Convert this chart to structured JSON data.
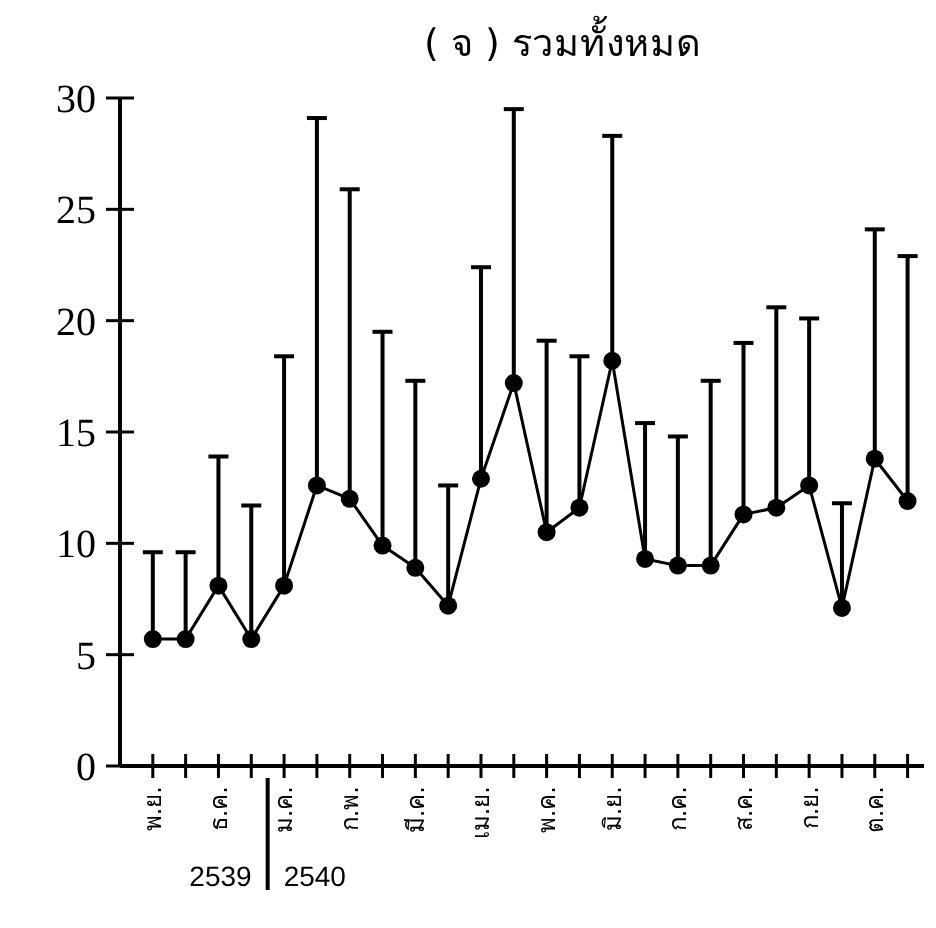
{
  "chart_data": {
    "type": "line",
    "title": "( จ ) รวมทั้งหมด",
    "categories": [
      "พ.ย.",
      null,
      "ธ.ค.",
      null,
      "ม.ค.",
      null,
      "ก.พ.",
      null,
      "มี.ค.",
      null,
      "เม.ย.",
      null,
      "พ.ค.",
      null,
      "มิ.ย.",
      null,
      "ก.ค.",
      null,
      "ส.ค.",
      null,
      "ก.ย.",
      null,
      "ต.ค.",
      null
    ],
    "values": [
      5.7,
      5.7,
      8.1,
      5.7,
      8.1,
      12.6,
      12.0,
      9.9,
      8.9,
      7.2,
      12.9,
      17.2,
      10.5,
      11.6,
      18.2,
      9.3,
      9.0,
      9.0,
      11.3,
      11.6,
      12.6,
      7.1,
      13.8,
      11.9
    ],
    "errors": [
      [
        5.7,
        9.6
      ],
      [
        5.7,
        9.6
      ],
      [
        8.1,
        13.9
      ],
      [
        5.7,
        11.7
      ],
      [
        8.1,
        18.4
      ],
      [
        12.6,
        29.1
      ],
      [
        12.0,
        25.9
      ],
      [
        9.9,
        19.5
      ],
      [
        8.9,
        17.3
      ],
      [
        7.2,
        12.6
      ],
      [
        12.9,
        22.4
      ],
      [
        17.2,
        29.5
      ],
      [
        10.5,
        19.1
      ],
      [
        11.6,
        18.4
      ],
      [
        18.2,
        28.3
      ],
      [
        9.3,
        15.4
      ],
      [
        9.0,
        14.8
      ],
      [
        9.0,
        17.3
      ],
      [
        11.3,
        19.0
      ],
      [
        11.6,
        20.6
      ],
      [
        12.6,
        20.1
      ],
      [
        7.1,
        11.8
      ],
      [
        13.8,
        24.1
      ],
      [
        11.9,
        22.9
      ]
    ],
    "color": "#000000",
    "marker": "circle",
    "line_style": "solid",
    "ylim": [
      0,
      30
    ],
    "yticks": [
      0,
      5,
      10,
      15,
      20,
      25,
      30
    ],
    "annotations": [
      "2539",
      "2540"
    ]
  }
}
